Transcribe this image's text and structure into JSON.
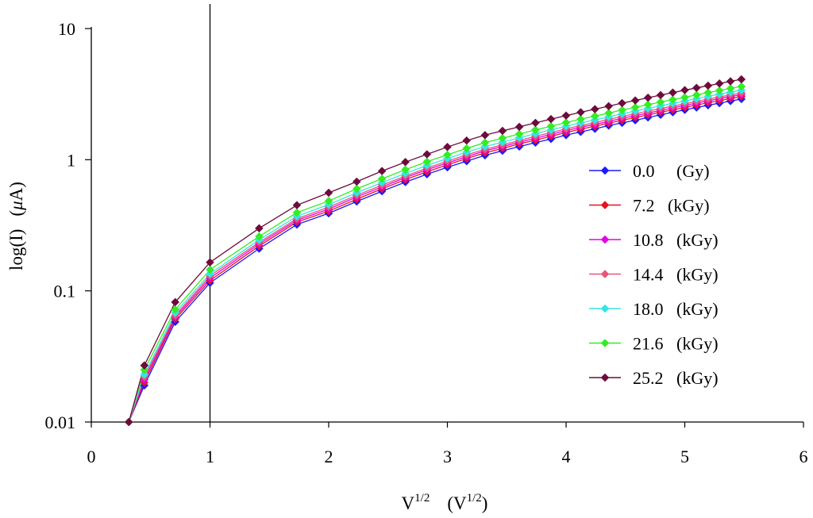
{
  "chart_data": {
    "type": "line",
    "xscale": "linear",
    "yscale": "log",
    "xlim": [
      0,
      6
    ],
    "ylim": [
      0.01,
      10
    ],
    "xticks": [
      0,
      1,
      2,
      3,
      4,
      5,
      6
    ],
    "xtick_labels": [
      "0",
      "1",
      "2",
      "3",
      "4",
      "5",
      "6"
    ],
    "yticks": [
      0.01,
      0.1,
      1,
      10
    ],
    "ytick_labels": [
      "0.01",
      "0.1",
      "1",
      "10"
    ],
    "xlabel": {
      "base": "V",
      "sup": "1/2",
      "unit_open": "(V",
      "unit_sup": "1/2",
      "unit_close": ")"
    },
    "ylabel": {
      "text": "log(I)",
      "unit_open": "(",
      "unit_mu": "μ",
      "unit_rest": "A)"
    },
    "reference_line_x": 1,
    "legend_position": "right",
    "x": [
      0.316,
      0.447,
      0.707,
      1.0,
      1.414,
      1.732,
      2.0,
      2.236,
      2.449,
      2.646,
      2.828,
      3.0,
      3.162,
      3.317,
      3.464,
      3.606,
      3.742,
      3.873,
      4.0,
      4.123,
      4.243,
      4.359,
      4.472,
      4.583,
      4.69,
      4.796,
      4.899,
      5.0,
      5.099,
      5.196,
      5.292,
      5.385,
      5.477
    ],
    "series": [
      {
        "name": "0.0     (Gy)",
        "color": "#1a1aff",
        "values": [
          0.01,
          0.019,
          0.058,
          0.115,
          0.21,
          0.32,
          0.39,
          0.48,
          0.575,
          0.675,
          0.775,
          0.875,
          0.975,
          1.08,
          1.17,
          1.26,
          1.35,
          1.44,
          1.54,
          1.63,
          1.72,
          1.82,
          1.91,
          2.0,
          2.1,
          2.2,
          2.3,
          2.4,
          2.5,
          2.6,
          2.7,
          2.8,
          2.9
        ]
      },
      {
        "name": "7.2   (kGy)",
        "color": "#e8131a",
        "values": [
          0.01,
          0.02,
          0.061,
          0.12,
          0.22,
          0.335,
          0.405,
          0.5,
          0.6,
          0.705,
          0.81,
          0.915,
          1.02,
          1.13,
          1.22,
          1.32,
          1.41,
          1.51,
          1.61,
          1.71,
          1.8,
          1.9,
          2.0,
          2.1,
          2.2,
          2.3,
          2.4,
          2.5,
          2.61,
          2.72,
          2.82,
          2.93,
          3.03
        ]
      },
      {
        "name": "10.8   (kGy)",
        "color": "#e600e6",
        "values": [
          0.01,
          0.021,
          0.063,
          0.125,
          0.228,
          0.345,
          0.42,
          0.52,
          0.62,
          0.73,
          0.84,
          0.945,
          1.055,
          1.17,
          1.26,
          1.36,
          1.46,
          1.56,
          1.66,
          1.77,
          1.86,
          1.96,
          2.07,
          2.17,
          2.27,
          2.38,
          2.48,
          2.59,
          2.7,
          2.81,
          2.92,
          3.03,
          3.13
        ]
      },
      {
        "name": "14.4   (kGy)",
        "color": "#e8557a",
        "values": [
          0.01,
          0.022,
          0.065,
          0.13,
          0.235,
          0.355,
          0.435,
          0.535,
          0.64,
          0.75,
          0.865,
          0.975,
          1.09,
          1.2,
          1.3,
          1.4,
          1.51,
          1.61,
          1.72,
          1.82,
          1.92,
          2.03,
          2.14,
          2.24,
          2.35,
          2.46,
          2.56,
          2.67,
          2.79,
          2.9,
          3.01,
          3.12,
          3.23
        ]
      },
      {
        "name": "18.0   (kGy)",
        "color": "#33e6e6",
        "values": [
          0.01,
          0.023,
          0.068,
          0.135,
          0.245,
          0.37,
          0.455,
          0.56,
          0.67,
          0.785,
          0.905,
          1.02,
          1.14,
          1.26,
          1.36,
          1.47,
          1.58,
          1.69,
          1.8,
          1.91,
          2.01,
          2.12,
          2.24,
          2.35,
          2.46,
          2.58,
          2.69,
          2.8,
          2.92,
          3.04,
          3.16,
          3.27,
          3.39
        ]
      },
      {
        "name": "21.6   (kGy)",
        "color": "#33ee22",
        "values": [
          0.01,
          0.025,
          0.072,
          0.145,
          0.26,
          0.395,
          0.485,
          0.6,
          0.715,
          0.84,
          0.965,
          1.09,
          1.22,
          1.35,
          1.46,
          1.57,
          1.69,
          1.8,
          1.92,
          2.04,
          2.15,
          2.27,
          2.39,
          2.51,
          2.63,
          2.75,
          2.87,
          2.99,
          3.12,
          3.25,
          3.37,
          3.5,
          3.62
        ]
      },
      {
        "name": "25.2   (kGy)",
        "color": "#6e0a3c",
        "values": [
          0.01,
          0.027,
          0.082,
          0.165,
          0.3,
          0.45,
          0.56,
          0.68,
          0.82,
          0.96,
          1.1,
          1.25,
          1.4,
          1.54,
          1.66,
          1.78,
          1.91,
          2.04,
          2.17,
          2.3,
          2.43,
          2.56,
          2.7,
          2.83,
          2.97,
          3.11,
          3.25,
          3.39,
          3.53,
          3.67,
          3.81,
          3.96,
          4.1
        ]
      }
    ]
  }
}
